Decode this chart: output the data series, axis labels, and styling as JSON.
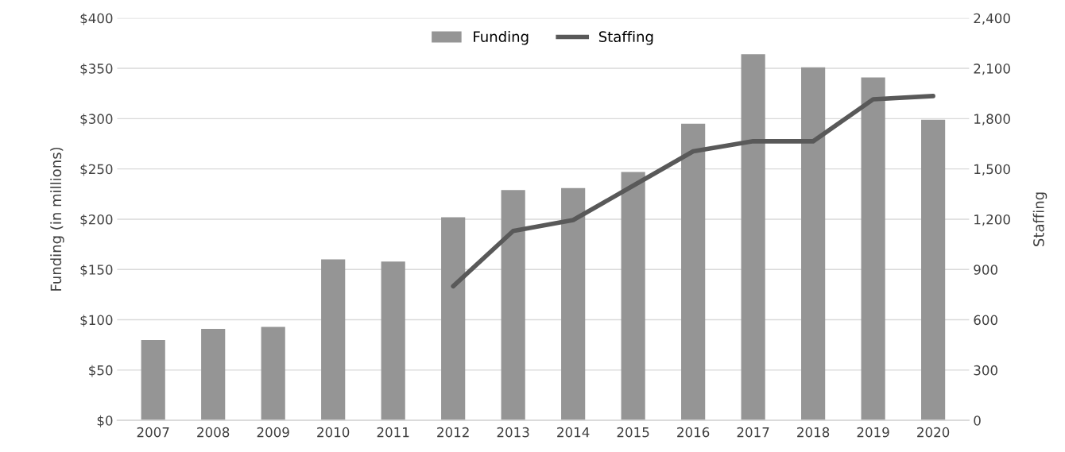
{
  "chart_data": {
    "type": "bar",
    "xlabel": null,
    "ylabel": "Funding (in millions)",
    "y2label": "Staffing",
    "categories": [
      "2007",
      "2008",
      "2009",
      "2010",
      "2011",
      "2012",
      "2013",
      "2014",
      "2015",
      "2016",
      "2017",
      "2018",
      "2019",
      "2020"
    ],
    "series": [
      {
        "name": "Funding",
        "color": "#959595",
        "values": [
          80,
          91,
          93,
          160,
          158,
          202,
          229,
          231,
          247,
          295,
          364,
          351,
          341,
          299
        ]
      },
      {
        "name": "Staffing",
        "type": "line",
        "axis": "y2",
        "color": "#595959",
        "values": [
          null,
          null,
          null,
          null,
          null,
          800,
          1130,
          1195,
          1400,
          1605,
          1665,
          1665,
          1915,
          1935
        ]
      }
    ],
    "ylim": [
      0,
      400
    ],
    "yticks": [
      {
        "value": 0,
        "label": "$0"
      },
      {
        "value": 50,
        "label": "$50"
      },
      {
        "value": 100,
        "label": "$100"
      },
      {
        "value": 150,
        "label": "$150"
      },
      {
        "value": 200,
        "label": "$200"
      },
      {
        "value": 250,
        "label": "$250"
      },
      {
        "value": 300,
        "label": "$300"
      },
      {
        "value": 350,
        "label": "$350"
      },
      {
        "value": 400,
        "label": "$400"
      }
    ],
    "y2lim": [
      0,
      2400
    ],
    "y2ticks": [
      0,
      300,
      600,
      900,
      {
        "value": 1200,
        "label": "1,200"
      },
      {
        "value": 1500,
        "label": "1,500"
      },
      {
        "value": 1800,
        "label": "1,800"
      },
      {
        "value": 2100,
        "label": "2,100"
      },
      {
        "value": 2400,
        "label": "2,400"
      }
    ],
    "grid": "y",
    "legend": "top",
    "marker": "none"
  }
}
